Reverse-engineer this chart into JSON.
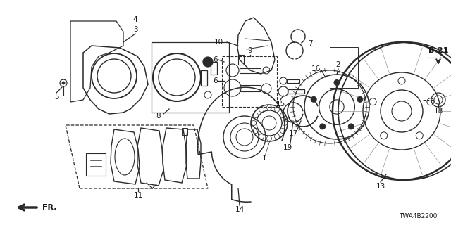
{
  "bg_color": "#ffffff",
  "line_color": "#2a2a2a",
  "diagram_code": "TWA4B2200",
  "figsize": [
    6.4,
    3.2
  ],
  "dpi": 100
}
